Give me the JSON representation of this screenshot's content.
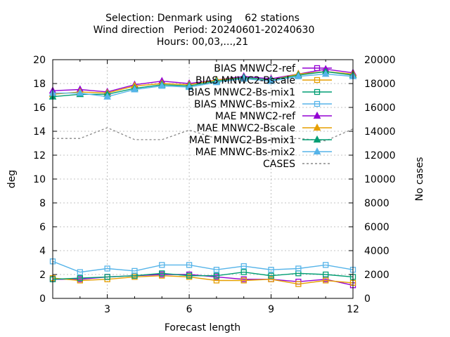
{
  "chart_data": {
    "type": "line",
    "title_lines": [
      "Selection: Denmark using    62 stations",
      "Wind direction   Period: 20240601-20240630",
      "Hours: 00,03,...,21"
    ],
    "xlabel": "Forecast length",
    "ylabel": "deg",
    "y2label": "No cases",
    "xlim": [
      1,
      12
    ],
    "ylim": [
      0,
      20
    ],
    "y2lim": [
      0,
      20000
    ],
    "x_ticks": [
      3,
      6,
      9,
      12
    ],
    "y_ticks": [
      0,
      2,
      4,
      6,
      8,
      10,
      12,
      14,
      16,
      18,
      20
    ],
    "y2_ticks": [
      0,
      2000,
      4000,
      6000,
      8000,
      10000,
      12000,
      14000,
      16000,
      18000,
      20000
    ],
    "grid": true,
    "legend_position": "top-right",
    "x": [
      1,
      2,
      3,
      4,
      5,
      6,
      7,
      8,
      9,
      10,
      11,
      12
    ],
    "series": [
      {
        "name": "BIAS MNWC2-ref",
        "color": "#9400d3",
        "marker": "square",
        "axis": "y",
        "values": [
          1.6,
          1.6,
          1.8,
          1.9,
          2.0,
          2.0,
          1.8,
          1.6,
          1.6,
          1.4,
          1.6,
          1.1
        ]
      },
      {
        "name": "BIAS MNWC2-Bscale",
        "color": "#e69f00",
        "marker": "square",
        "axis": "y",
        "values": [
          1.7,
          1.5,
          1.6,
          1.8,
          1.9,
          1.8,
          1.5,
          1.5,
          1.6,
          1.2,
          1.5,
          1.3
        ]
      },
      {
        "name": "BIAS MNWC2-Bs-mix1",
        "color": "#009e73",
        "marker": "square",
        "axis": "y",
        "values": [
          1.6,
          1.7,
          1.8,
          1.9,
          2.1,
          1.9,
          1.9,
          2.2,
          1.9,
          2.1,
          2.0,
          1.8
        ]
      },
      {
        "name": "BIAS MNWC-Bs-mix2",
        "color": "#56b4e9",
        "marker": "square",
        "axis": "y",
        "values": [
          3.1,
          2.2,
          2.5,
          2.3,
          2.8,
          2.8,
          2.4,
          2.7,
          2.4,
          2.5,
          2.8,
          2.4
        ]
      },
      {
        "name": "MAE MNWC2-ref",
        "color": "#9400d3",
        "marker": "triangle",
        "axis": "y",
        "values": [
          17.4,
          17.5,
          17.3,
          17.9,
          18.2,
          18.0,
          18.3,
          18.6,
          18.4,
          18.8,
          19.2,
          18.9
        ]
      },
      {
        "name": "MAE MNWC2-Bscale",
        "color": "#e69f00",
        "marker": "triangle",
        "axis": "y",
        "values": [
          17.1,
          17.3,
          17.2,
          17.8,
          18.0,
          17.9,
          18.3,
          18.5,
          18.3,
          18.8,
          19.0,
          18.8
        ]
      },
      {
        "name": "MAE MNWC2-Bs-mix1",
        "color": "#009e73",
        "marker": "triangle",
        "axis": "y",
        "values": [
          16.9,
          17.1,
          17.1,
          17.6,
          17.9,
          17.8,
          18.2,
          18.5,
          18.3,
          18.7,
          19.0,
          18.7
        ]
      },
      {
        "name": "MAE MNWC-Bs-mix2",
        "color": "#56b4e9",
        "marker": "triangle",
        "axis": "y",
        "values": [
          17.2,
          17.2,
          16.9,
          17.5,
          17.8,
          17.7,
          18.1,
          18.4,
          18.2,
          18.6,
          18.8,
          18.6
        ]
      },
      {
        "name": "CASES",
        "color": "#888888",
        "marker": "none",
        "dashed": true,
        "axis": "y2",
        "values": [
          13400,
          13400,
          14300,
          13300,
          13300,
          14100,
          13400,
          13200,
          13300,
          13400,
          13200,
          14200
        ]
      }
    ]
  }
}
